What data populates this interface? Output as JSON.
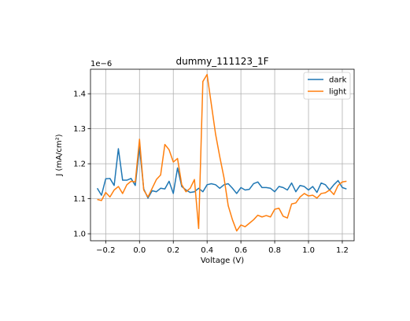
{
  "chart_data": {
    "type": "line",
    "title": "dummy_111123_1F",
    "xlabel": "Voltage (V)",
    "ylabel": "J (mA/cm²)",
    "offset_label": "1e−6",
    "xlim": [
      -0.29,
      1.27
    ],
    "ylim": [
      9.8e-07,
      1.47e-06
    ],
    "xticks": [
      -0.2,
      0.0,
      0.2,
      0.4,
      0.6,
      0.8,
      1.0,
      1.2
    ],
    "xtick_labels": [
      "−0.2",
      "0.0",
      "0.2",
      "0.4",
      "0.6",
      "0.8",
      "1.0",
      "1.2"
    ],
    "yticks": [
      1e-06,
      1.1e-06,
      1.2e-06,
      1.3e-06,
      1.4e-06
    ],
    "ytick_labels": [
      "1.0",
      "1.1",
      "1.2",
      "1.3",
      "1.4"
    ],
    "grid": true,
    "legend_position": "top-right",
    "x": [
      -0.25,
      -0.225,
      -0.2,
      -0.175,
      -0.15,
      -0.125,
      -0.1,
      -0.075,
      -0.05,
      -0.025,
      0.0,
      0.025,
      0.05,
      0.075,
      0.1,
      0.125,
      0.15,
      0.175,
      0.2,
      0.225,
      0.25,
      0.275,
      0.3,
      0.325,
      0.35,
      0.375,
      0.4,
      0.425,
      0.45,
      0.475,
      0.5,
      0.525,
      0.55,
      0.575,
      0.6,
      0.625,
      0.65,
      0.675,
      0.7,
      0.725,
      0.75,
      0.775,
      0.8,
      0.825,
      0.85,
      0.875,
      0.9,
      0.925,
      0.95,
      0.975,
      1.0,
      1.025,
      1.05,
      1.075,
      1.1,
      1.125,
      1.15,
      1.175,
      1.2,
      1.225
    ],
    "series": [
      {
        "name": "dark",
        "color": "#1f77b4",
        "values": [
          1.13e-06,
          1.11e-06,
          1.157e-06,
          1.158e-06,
          1.138e-06,
          1.243e-06,
          1.153e-06,
          1.153e-06,
          1.158e-06,
          1.138e-06,
          1.248e-06,
          1.128e-06,
          1.102e-06,
          1.123e-06,
          1.12e-06,
          1.13e-06,
          1.128e-06,
          1.15e-06,
          1.115e-06,
          1.188e-06,
          1.135e-06,
          1.125e-06,
          1.118e-06,
          1.12e-06,
          1.13e-06,
          1.12e-06,
          1.14e-06,
          1.143e-06,
          1.14e-06,
          1.13e-06,
          1.14e-06,
          1.143e-06,
          1.13e-06,
          1.115e-06,
          1.132e-06,
          1.125e-06,
          1.127e-06,
          1.143e-06,
          1.148e-06,
          1.132e-06,
          1.132e-06,
          1.13e-06,
          1.12e-06,
          1.135e-06,
          1.132e-06,
          1.125e-06,
          1.145e-06,
          1.12e-06,
          1.138e-06,
          1.135e-06,
          1.125e-06,
          1.135e-06,
          1.118e-06,
          1.145e-06,
          1.14e-06,
          1.125e-06,
          1.14e-06,
          1.152e-06,
          1.132e-06,
          1.128e-06
        ]
      },
      {
        "name": "light",
        "color": "#ff7f0e",
        "values": [
          1.098e-06,
          1.095e-06,
          1.118e-06,
          1.105e-06,
          1.125e-06,
          1.135e-06,
          1.115e-06,
          1.14e-06,
          1.15e-06,
          1.148e-06,
          1.27e-06,
          1.125e-06,
          1.105e-06,
          1.13e-06,
          1.155e-06,
          1.168e-06,
          1.255e-06,
          1.24e-06,
          1.205e-06,
          1.215e-06,
          1.14e-06,
          1.12e-06,
          1.13e-06,
          1.155e-06,
          1.015e-06,
          1.435e-06,
          1.455e-06,
          1.37e-06,
          1.285e-06,
          1.22e-06,
          1.16e-06,
          1.08e-06,
          1.04e-06,
          1.008e-06,
          1.025e-06,
          1.02e-06,
          1.03e-06,
          1.04e-06,
          1.053e-06,
          1.048e-06,
          1.052e-06,
          1.048e-06,
          1.07e-06,
          1.073e-06,
          1.05e-06,
          1.045e-06,
          1.085e-06,
          1.088e-06,
          1.105e-06,
          1.115e-06,
          1.108e-06,
          1.11e-06,
          1.102e-06,
          1.115e-06,
          1.117e-06,
          1.125e-06,
          1.112e-06,
          1.138e-06,
          1.148e-06,
          1.15e-06
        ]
      }
    ]
  }
}
